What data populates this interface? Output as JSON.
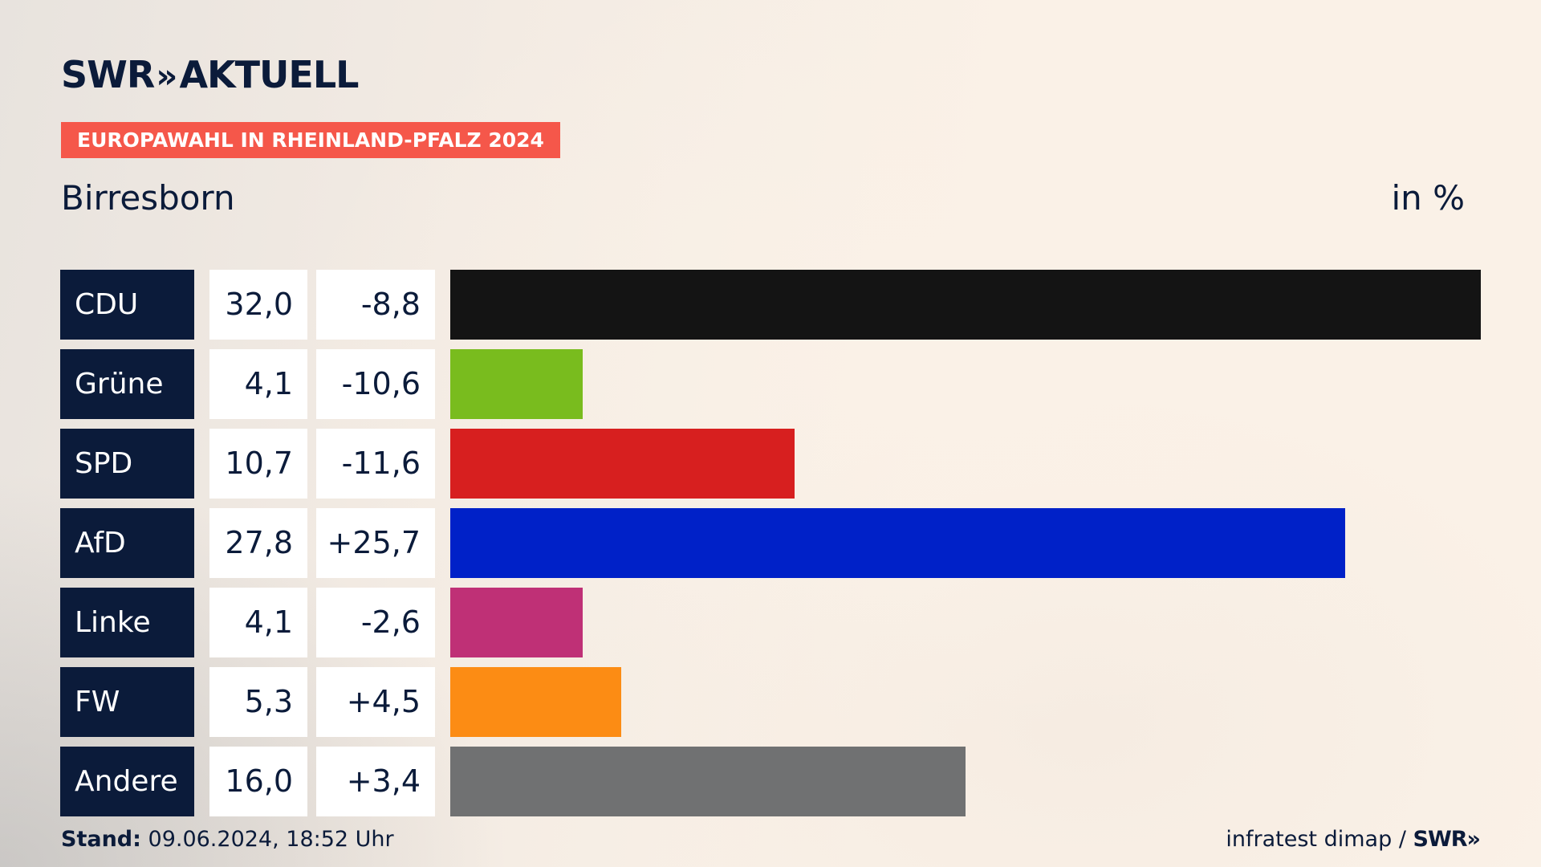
{
  "brand": {
    "logo_text": "SWR",
    "logo_suffix": "AKTUELL",
    "footer_logo": "SWR"
  },
  "header": {
    "tag": "EUROPAWAHL IN RHEINLAND-PFALZ 2024",
    "region": "Birresborn",
    "unit": "in %"
  },
  "footer": {
    "stand_label": "Stand:",
    "stand_value": "09.06.2024, 18:52 Uhr",
    "source": "infratest dimap /"
  },
  "colors": {
    "party_box": "#0b1b3a",
    "tag": "#f5574a"
  },
  "chart_data": {
    "type": "bar",
    "orientation": "horizontal",
    "unit": "in %",
    "categories": [
      "CDU",
      "Grüne",
      "SPD",
      "AfD",
      "Linke",
      "FW",
      "Andere"
    ],
    "values": [
      32.0,
      4.1,
      10.7,
      27.8,
      4.1,
      5.3,
      16.0
    ],
    "value_labels": [
      "32,0",
      "4,1",
      "10,7",
      "27,8",
      "4,1",
      "5,3",
      "16,0"
    ],
    "diff_labels": [
      "-8,8",
      "-10,6",
      "-11,6",
      "+25,7",
      "-2,6",
      "+4,5",
      "+3,4"
    ],
    "colors": [
      "#141414",
      "#79bc1e",
      "#d71f1f",
      "#0021c8",
      "#bf3076",
      "#fc8c14",
      "#707172"
    ],
    "xlim": [
      0,
      32.0
    ],
    "grid": false,
    "legend": "none"
  }
}
